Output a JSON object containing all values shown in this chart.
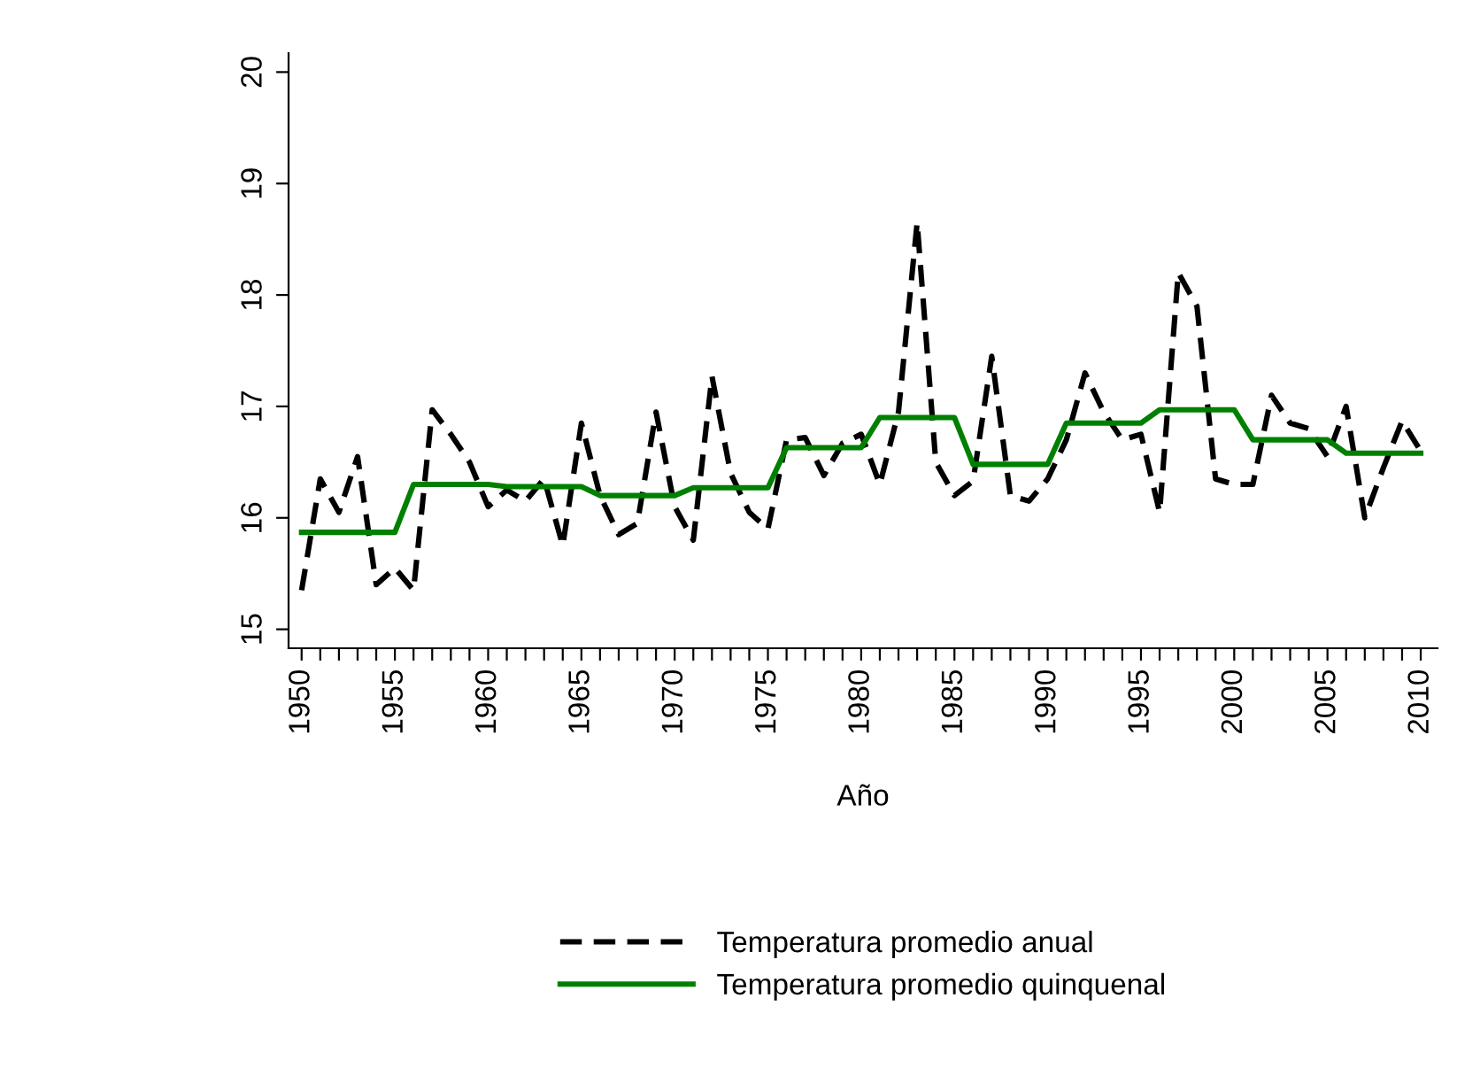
{
  "chart_data": {
    "type": "line",
    "xlabel": "Año",
    "x": [
      1950,
      1951,
      1952,
      1953,
      1954,
      1955,
      1956,
      1957,
      1958,
      1959,
      1960,
      1961,
      1962,
      1963,
      1964,
      1965,
      1966,
      1967,
      1968,
      1969,
      1970,
      1971,
      1972,
      1973,
      1974,
      1975,
      1976,
      1977,
      1978,
      1979,
      1980,
      1981,
      1982,
      1983,
      1984,
      1985,
      1986,
      1987,
      1988,
      1989,
      1990,
      1991,
      1992,
      1993,
      1994,
      1995,
      1996,
      1997,
      1998,
      1999,
      2000,
      2001,
      2002,
      2003,
      2004,
      2005,
      2006,
      2007,
      2008,
      2009,
      2010
    ],
    "series": [
      {
        "name": "Temperatura promedio anual",
        "color": "#000000",
        "line_style": "dashed",
        "values": [
          15.35,
          16.35,
          16.05,
          16.55,
          15.4,
          15.55,
          15.35,
          16.97,
          16.75,
          16.5,
          16.1,
          16.25,
          16.15,
          16.35,
          15.75,
          16.85,
          16.2,
          15.85,
          15.95,
          16.95,
          16.1,
          15.8,
          17.27,
          16.4,
          16.05,
          15.9,
          16.7,
          16.72,
          16.38,
          16.67,
          16.75,
          16.3,
          16.95,
          18.65,
          16.5,
          16.2,
          16.33,
          17.45,
          16.2,
          16.15,
          16.35,
          16.7,
          17.3,
          16.95,
          16.7,
          16.75,
          16.05,
          18.2,
          17.9,
          16.35,
          16.3,
          16.3,
          17.1,
          16.85,
          16.8,
          16.55,
          17.0,
          16.0,
          16.45,
          16.87,
          16.6
        ]
      },
      {
        "name": "Temperatura promedio quinquenal",
        "color": "#008000",
        "line_style": "solid",
        "values": [
          15.87,
          15.87,
          15.87,
          15.87,
          15.87,
          15.87,
          16.3,
          16.3,
          16.3,
          16.3,
          16.3,
          16.28,
          16.28,
          16.28,
          16.28,
          16.28,
          16.2,
          16.2,
          16.2,
          16.2,
          16.2,
          16.27,
          16.27,
          16.27,
          16.27,
          16.27,
          16.63,
          16.63,
          16.63,
          16.63,
          16.63,
          16.9,
          16.9,
          16.9,
          16.9,
          16.9,
          16.48,
          16.48,
          16.48,
          16.48,
          16.48,
          16.85,
          16.85,
          16.85,
          16.85,
          16.85,
          16.97,
          16.97,
          16.97,
          16.97,
          16.97,
          16.7,
          16.7,
          16.7,
          16.7,
          16.7,
          16.58,
          16.58,
          16.58,
          16.58,
          16.58
        ]
      }
    ],
    "xlim": [
      1949.3,
      2010.9
    ],
    "ylim": [
      14.83,
      20.17
    ],
    "xticks": [
      1950,
      {
        "value": 1951,
        "label": null
      },
      {
        "value": 1952,
        "label": null
      },
      {
        "value": 1953,
        "label": null
      },
      {
        "value": 1954,
        "label": null
      },
      1955,
      {
        "value": 1956,
        "label": null
      },
      {
        "value": 1957,
        "label": null
      },
      {
        "value": 1958,
        "label": null
      },
      {
        "value": 1959,
        "label": null
      },
      1960,
      {
        "value": 1961,
        "label": null
      },
      {
        "value": 1962,
        "label": null
      },
      {
        "value": 1963,
        "label": null
      },
      {
        "value": 1964,
        "label": null
      },
      1965,
      {
        "value": 1966,
        "label": null
      },
      {
        "value": 1967,
        "label": null
      },
      {
        "value": 1968,
        "label": null
      },
      {
        "value": 1969,
        "label": null
      },
      1970,
      {
        "value": 1971,
        "label": null
      },
      {
        "value": 1972,
        "label": null
      },
      {
        "value": 1973,
        "label": null
      },
      {
        "value": 1974,
        "label": null
      },
      1975,
      {
        "value": 1976,
        "label": null
      },
      {
        "value": 1977,
        "label": null
      },
      {
        "value": 1978,
        "label": null
      },
      {
        "value": 1979,
        "label": null
      },
      1980,
      {
        "value": 1981,
        "label": null
      },
      {
        "value": 1982,
        "label": null
      },
      {
        "value": 1983,
        "label": null
      },
      {
        "value": 1984,
        "label": null
      },
      1985,
      {
        "value": 1986,
        "label": null
      },
      {
        "value": 1987,
        "label": null
      },
      {
        "value": 1988,
        "label": null
      },
      {
        "value": 1989,
        "label": null
      },
      1990,
      {
        "value": 1991,
        "label": null
      },
      {
        "value": 1992,
        "label": null
      },
      {
        "value": 1993,
        "label": null
      },
      {
        "value": 1994,
        "label": null
      },
      1995,
      {
        "value": 1996,
        "label": null
      },
      {
        "value": 1997,
        "label": null
      },
      {
        "value": 1998,
        "label": null
      },
      {
        "value": 1999,
        "label": null
      },
      2000,
      {
        "value": 2001,
        "label": null
      },
      {
        "value": 2002,
        "label": null
      },
      {
        "value": 2003,
        "label": null
      },
      {
        "value": 2004,
        "label": null
      },
      2005,
      {
        "value": 2006,
        "label": null
      },
      {
        "value": 2007,
        "label": null
      },
      {
        "value": 2008,
        "label": null
      },
      {
        "value": 2009,
        "label": null
      },
      2010
    ],
    "yticks": [
      15,
      16,
      17,
      18,
      19,
      20
    ],
    "grid": false,
    "legend": "bottom",
    "marker": "none"
  }
}
